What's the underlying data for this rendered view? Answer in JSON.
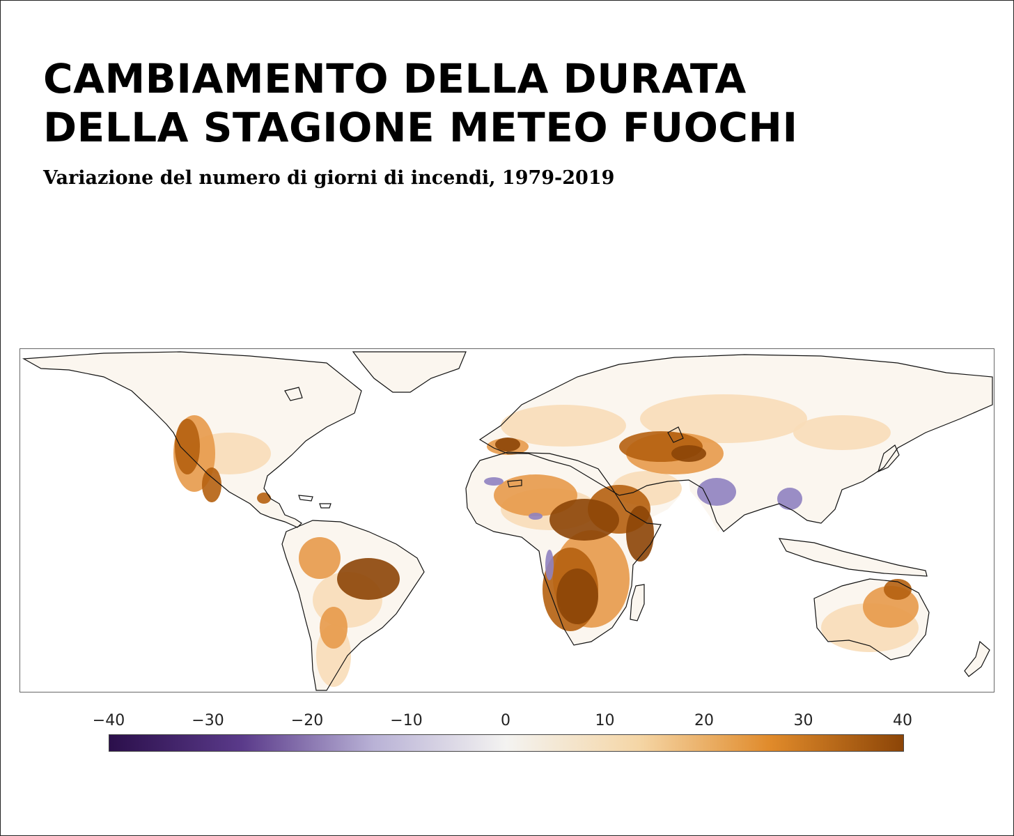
{
  "title": "CAMBIAMENTO DELLA DURATA\nDELLA STAGIONE METEO FUOCHI",
  "subtitle": "Variazione del numero di giorni di incendi, 1979-2019",
  "colorbar": {
    "ticks": [
      "−40",
      "−30",
      "−20",
      "−10",
      "0",
      "10",
      "20",
      "30",
      "40"
    ],
    "min": -40,
    "max": 40,
    "colors": [
      "#2b0f4b",
      "#5a3a8a",
      "#b9b2d6",
      "#f4f3f1",
      "#f5d6a6",
      "#e08a2a",
      "#8c4507"
    ]
  },
  "map_colors": {
    "land": "#fbf6ef",
    "light": "#f8ddb8",
    "medium": "#e79a4a",
    "strong": "#b5600f",
    "darkest": "#8c4507",
    "decrease": "#8f82c0",
    "coast": "#111111"
  }
}
